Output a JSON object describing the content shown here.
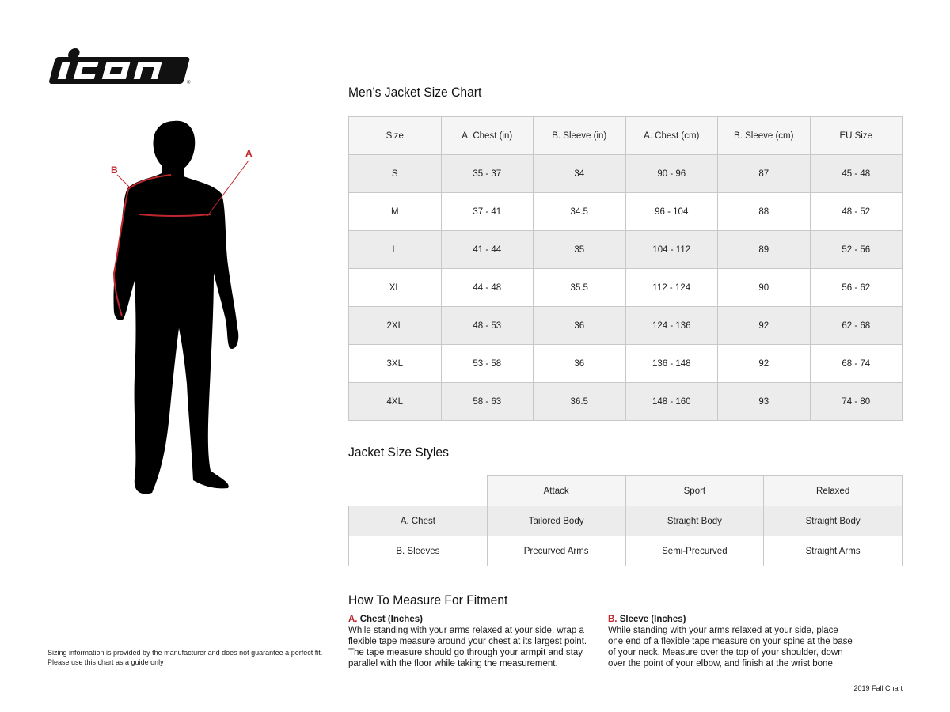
{
  "brand": {
    "logo_text": "icon"
  },
  "figure": {
    "label_a": "A",
    "label_b": "B",
    "accent_color": "#c0272d"
  },
  "size_chart": {
    "title": "Men’s Jacket Size Chart",
    "headers": [
      "Size",
      "A. Chest (in)",
      "B. Sleeve (in)",
      "A. Chest (cm)",
      "B. Sleeve (cm)",
      "EU Size"
    ],
    "rows": [
      [
        "S",
        "35 - 37",
        "34",
        "90 - 96",
        "87",
        "45 - 48"
      ],
      [
        "M",
        "37 - 41",
        "34.5",
        "96 - 104",
        "88",
        "48 - 52"
      ],
      [
        "L",
        "41 - 44",
        "35",
        "104 - 112",
        "89",
        "52 - 56"
      ],
      [
        "XL",
        "44 - 48",
        "35.5",
        "112 - 124",
        "90",
        "56 - 62"
      ],
      [
        "2XL",
        "48 - 53",
        "36",
        "124 - 136",
        "92",
        "62 - 68"
      ],
      [
        "3XL",
        "53 - 58",
        "36",
        "136 - 148",
        "92",
        "68 - 74"
      ],
      [
        "4XL",
        "58 - 63",
        "36.5",
        "148 - 160",
        "93",
        "74 - 80"
      ]
    ]
  },
  "styles": {
    "title": "Jacket Size Styles",
    "headers": [
      "Attack",
      "Sport",
      "Relaxed"
    ],
    "rows": [
      [
        "A. Chest",
        "Tailored Body",
        "Straight Body",
        "Straight Body"
      ],
      [
        "B. Sleeves",
        "Precurved Arms",
        "Semi-Precurved",
        "Straight Arms"
      ]
    ]
  },
  "measure": {
    "title": "How To Measure For Fitment",
    "chest": {
      "prefix": "A.",
      "heading": "Chest (Inches)",
      "text": "While standing with your arms relaxed at your side, wrap a flexible tape measure around your chest at its largest point. The tape measure should go through your armpit and stay parallel with the floor while taking the measurement."
    },
    "sleeve": {
      "prefix": "B.",
      "heading": "Sleeve (Inches)",
      "text": "While standing with your arms relaxed at your side, place one end of a flexible tape measure on your spine at the base of your neck. Measure over the top of your shoulder, down over the point of your elbow, and finish at the wrist bone."
    }
  },
  "disclaimer": {
    "line1": "Sizing information is provided by the manufacturer and does not guarantee a perfect fit.",
    "line2": "Please use this chart as a guide only"
  },
  "footer": {
    "edition": "2019 Fall Chart"
  }
}
